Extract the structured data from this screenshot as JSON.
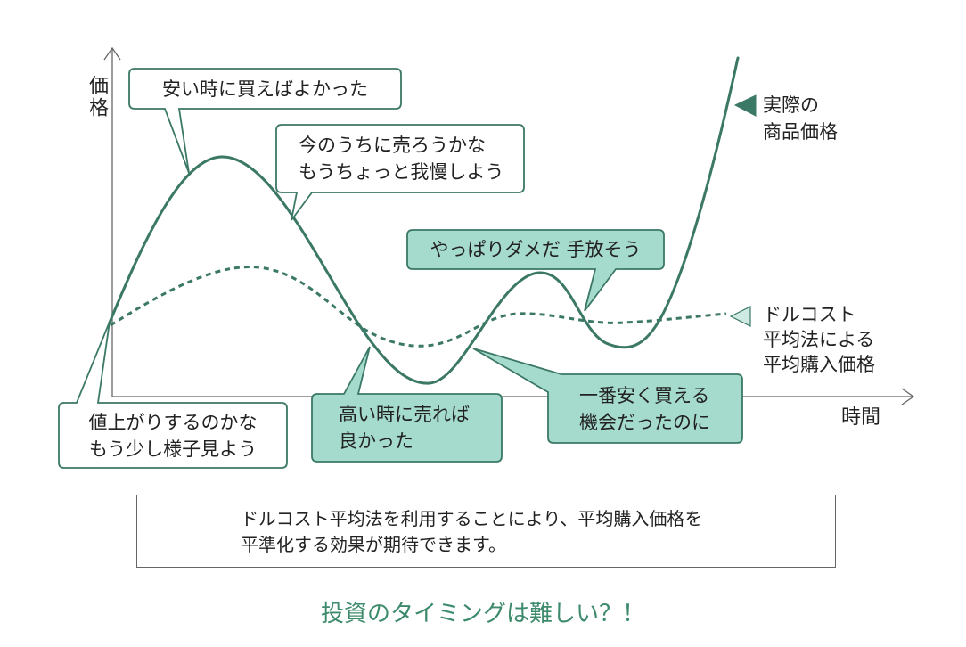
{
  "axes": {
    "y_label": "価格",
    "x_label": "時間"
  },
  "legend": {
    "actual": [
      "実際の",
      "商品価格"
    ],
    "dca": [
      "ドルコスト",
      "平均法による",
      "平均購入価格"
    ]
  },
  "bubbles": {
    "buy_low": [
      "安い時に買えばよかった"
    ],
    "sell_now": [
      "今のうちに売ろうかな",
      "もうちょっと我慢しよう"
    ],
    "give_up": [
      "やっぱりダメだ 手放そう"
    ],
    "wait": [
      "値上がりするのかな",
      "もう少し様子見よう"
    ],
    "sell_high": [
      "高い時に売れば",
      "良かった"
    ],
    "cheapest": [
      "一番安く買える",
      "機会だったのに"
    ]
  },
  "note": [
    "ドルコスト平均法を利用することにより、平均購入価格を",
    "平準化する効果が期待できます。"
  ],
  "title": "投資のタイミングは難しい？！",
  "colors": {
    "line": "#3b7866",
    "bubble_fill": "#a5dbcd",
    "bubble_white": "#ffffff",
    "dca_marker": "#cfeae2",
    "axis": "#666666",
    "title": "#3d8b6c"
  }
}
